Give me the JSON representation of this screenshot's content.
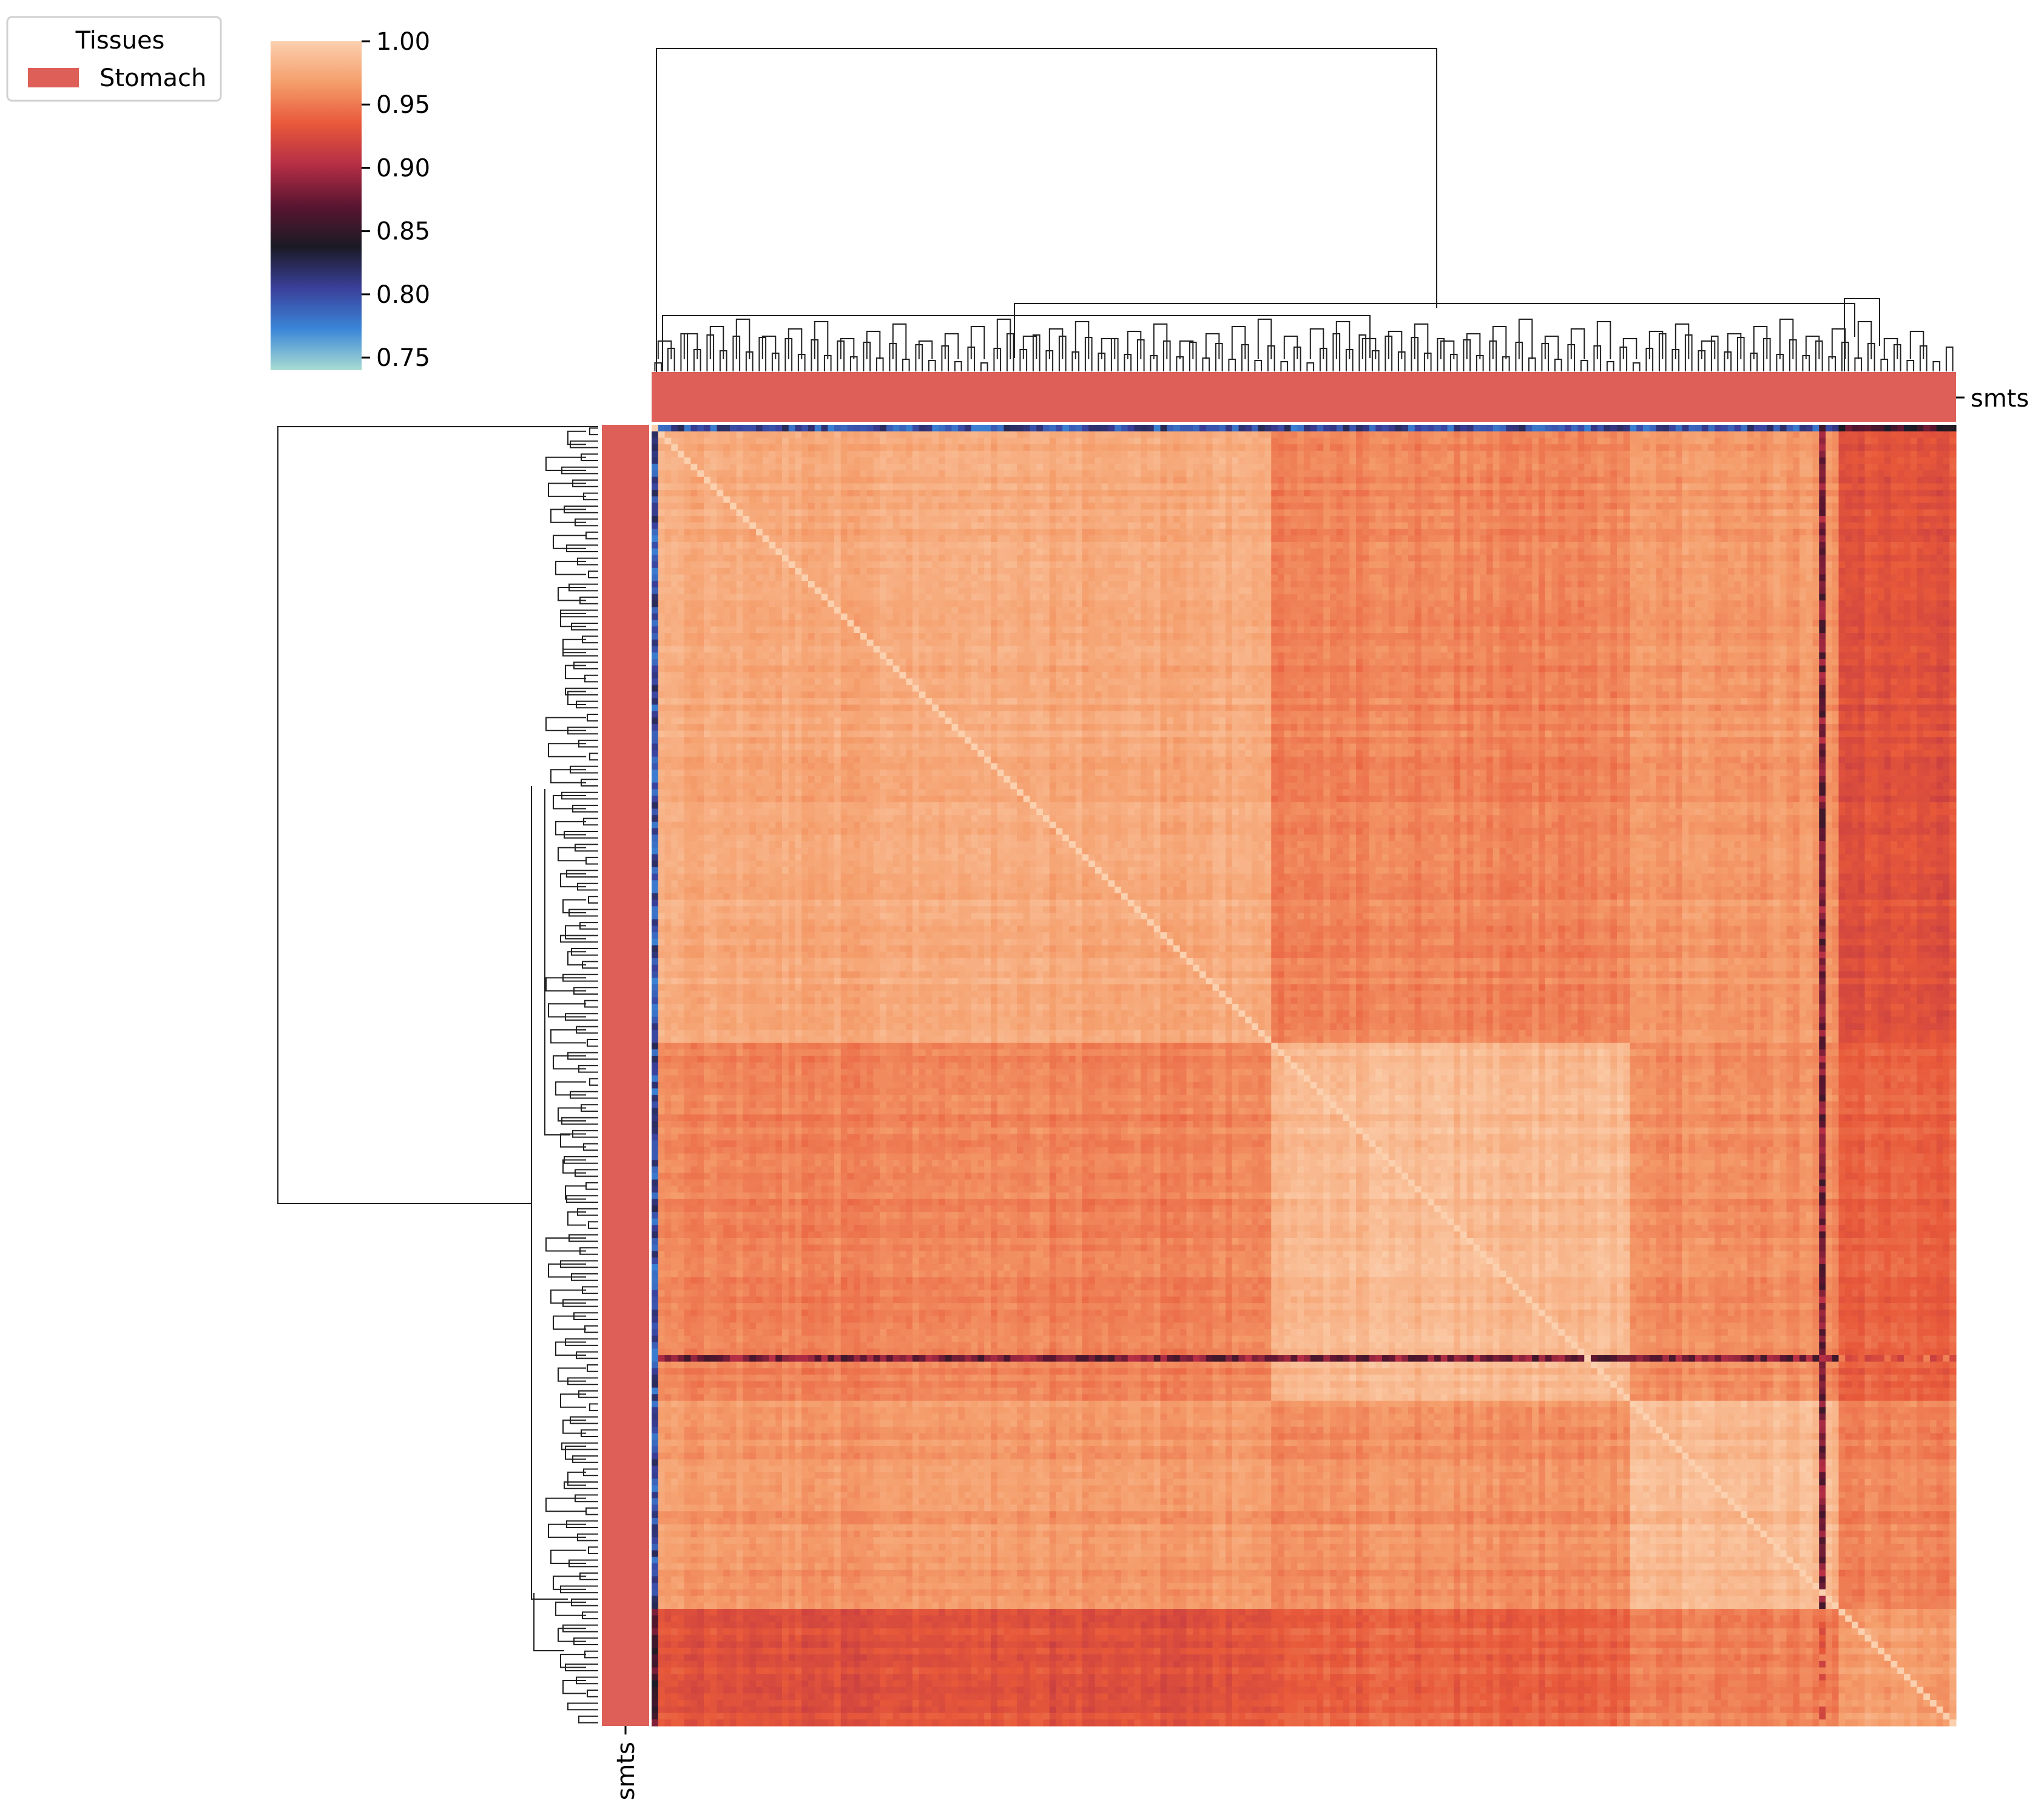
{
  "chart_data": {
    "type": "heatmap",
    "title": "",
    "legend": {
      "title": "Tissues",
      "placement": "top-left",
      "entries": [
        {
          "label": "Stomach",
          "color": "#dd5f58"
        }
      ]
    },
    "colorbar": {
      "range": [
        0.74,
        1.0
      ],
      "ticks": [
        "1.00",
        "0.95",
        "0.90",
        "0.85",
        "0.80",
        "0.75"
      ],
      "tick_values": [
        1.0,
        0.95,
        0.9,
        0.85,
        0.8,
        0.75
      ],
      "colormap": "icefire",
      "stops": [
        "#a8dcd2",
        "#3a86d8",
        "#3a3f9a",
        "#1a1a24",
        "#5a1530",
        "#b52e45",
        "#e8593a",
        "#f59e6c",
        "#fbd0ae"
      ]
    },
    "col_annotation_label": "smts",
    "row_annotation_label": "smts",
    "annotation_color": "#dd5f58",
    "matrix_size": 200,
    "cluster_boundaries": [
      95,
      150,
      182
    ],
    "block_mean_similarity": [
      [
        0.975,
        0.955,
        0.965,
        0.93
      ],
      [
        0.955,
        0.985,
        0.96,
        0.94
      ],
      [
        0.965,
        0.96,
        0.985,
        0.955
      ],
      [
        0.93,
        0.94,
        0.955,
        0.97
      ]
    ],
    "outlier_rows": [
      {
        "index": 0,
        "mean_similarity": 0.8
      },
      {
        "index": 143,
        "mean_similarity": 0.88
      }
    ],
    "outlier_cols": [
      {
        "index": 0,
        "mean_similarity": 0.8
      },
      {
        "index": 179,
        "mean_similarity": 0.88
      }
    ],
    "xlabel": "",
    "ylabel": "",
    "grid": false
  }
}
